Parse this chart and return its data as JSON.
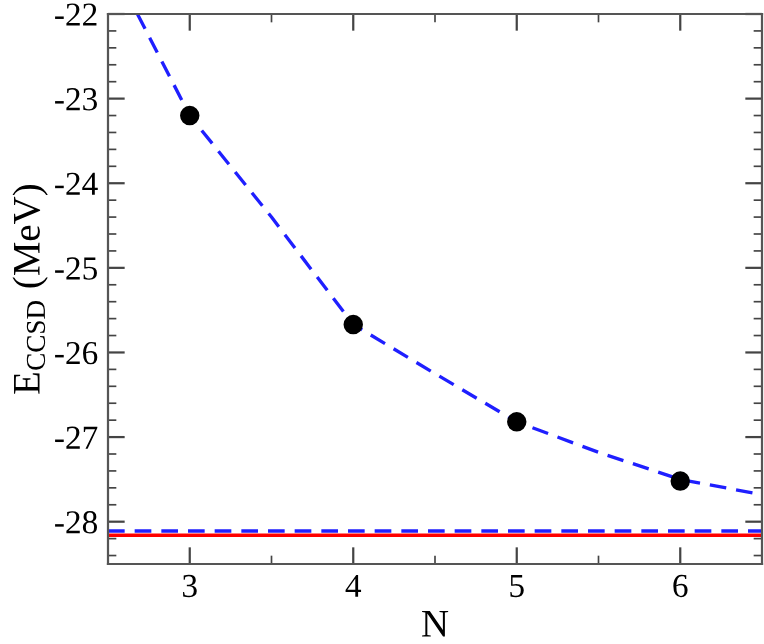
{
  "chart_data": {
    "type": "scatter",
    "xlabel": "N",
    "ylabel": "E$_{CCSD}$ (MeV)",
    "series": [
      {
        "type": "line",
        "color": "#1f1fff",
        "line_style": "dashed",
        "marker": "none",
        "x": [
          2.68,
          3,
          3.5,
          4,
          4.5,
          5,
          5.5,
          6,
          6.5
        ],
        "values": [
          -22,
          -23.2,
          -24.4,
          -25.67,
          -26.25,
          -26.82,
          -27.18,
          -27.5,
          -27.68
        ]
      },
      {
        "color": "#000000",
        "marker": "circle",
        "x": [
          3,
          4,
          5,
          6
        ],
        "values": [
          -23.2,
          -25.67,
          -26.82,
          -27.52
        ]
      }
    ],
    "ref_lines": [
      {
        "axis": "y",
        "value": -28.11,
        "color": "#1f1fff",
        "line_style": "dashed"
      },
      {
        "axis": "y",
        "value": -28.16,
        "color": "#ff0000",
        "line_style": "solid"
      }
    ],
    "xlim": [
      2.5,
      6.5
    ],
    "xticks": [
      3,
      4,
      5,
      6
    ],
    "ylim": [
      -28.5,
      -22
    ],
    "yticks": [
      {
        "value": -28,
        "label": "-28"
      },
      {
        "value": -27,
        "label": "-27"
      },
      {
        "value": -26,
        "label": "-26"
      },
      {
        "value": -25,
        "label": "-25"
      },
      {
        "value": -24,
        "label": "-24"
      },
      {
        "value": -23,
        "label": "-23"
      },
      {
        "value": -22,
        "label": "-22"
      }
    ],
    "grid": false,
    "legend": false
  }
}
